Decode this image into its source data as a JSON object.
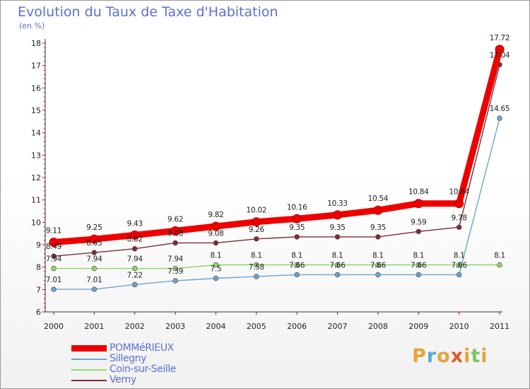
{
  "header": {
    "title": "Evolution du Taux de Taxe d'Habitation",
    "subtitle": "(en %)"
  },
  "brand": {
    "text": "Proxiti",
    "letter_colors": [
      "#e8a33a",
      "#5aa7d6",
      "#e8a33a",
      "#e05b2b",
      "#e8a33a",
      "#7cc46a",
      "#e8a33a"
    ]
  },
  "chart_data": {
    "type": "line",
    "x": [
      "2000",
      "2001",
      "2002",
      "2003",
      "2004",
      "2005",
      "2006",
      "2007",
      "2008",
      "2009",
      "2010",
      "2011"
    ],
    "ylim": [
      6,
      18
    ],
    "yticks": [
      "6",
      "7",
      "8",
      "9",
      "10",
      "11",
      "12",
      "13",
      "14",
      "15",
      "16",
      "17",
      "18"
    ],
    "grid": false,
    "legend_position": "bottom-left",
    "series": [
      {
        "name": "POMMéRIEUX",
        "color": "#ee0000",
        "values": [
          9.11,
          9.25,
          9.43,
          9.62,
          9.82,
          10.02,
          10.16,
          10.33,
          10.54,
          10.84,
          10.84,
          17.72
        ],
        "labels": [
          "9.11",
          "9.25",
          "9.43",
          "9.62",
          "9.82",
          "10.02",
          "10.16",
          "10.33",
          "10.54",
          "10.84",
          "10.84",
          "17.72"
        ]
      },
      {
        "name": "Sillegny",
        "color": "#6fa3cc",
        "values": [
          7.01,
          7.01,
          7.22,
          7.39,
          7.5,
          7.58,
          7.66,
          7.66,
          7.66,
          7.66,
          7.66,
          14.65
        ],
        "labels": [
          "7.01",
          "7.01",
          "7.22",
          "7.39",
          "7.5",
          "7.58",
          "7.66",
          "7.66",
          "7.66",
          "7.66",
          "7.66",
          "14.65"
        ]
      },
      {
        "name": "Coin-sur-Seille",
        "color": "#8fd66b",
        "values": [
          7.94,
          7.94,
          7.94,
          7.94,
          8.1,
          8.1,
          8.1,
          8.1,
          8.1,
          8.1,
          8.1,
          8.1
        ],
        "labels": [
          "7.94",
          "7.94",
          "7.94",
          "7.94",
          "8.1",
          "8.1",
          "8.1",
          "8.1",
          "8.1",
          "8.1",
          "8.1",
          "8.1"
        ]
      },
      {
        "name": "Verny",
        "color": "#7a2f33",
        "values": [
          8.49,
          8.65,
          8.82,
          9.08,
          9.08,
          9.26,
          9.35,
          9.35,
          9.35,
          9.59,
          9.78,
          17.04
        ],
        "labels": [
          "8.49",
          "8.65",
          "8.82",
          "9.08",
          "9.08",
          "9.26",
          "9.35",
          "9.35",
          "9.35",
          "9.59",
          "9.78",
          "17.04"
        ]
      }
    ]
  }
}
